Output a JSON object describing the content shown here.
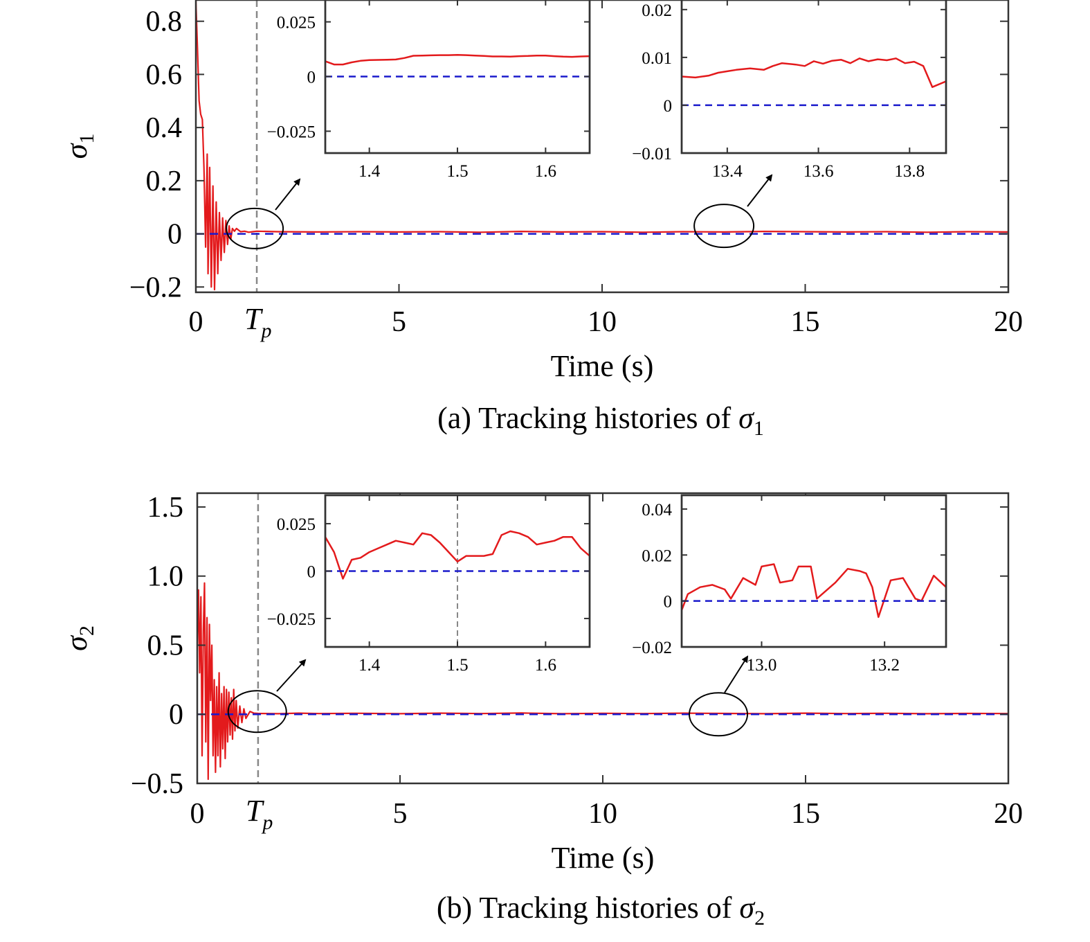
{
  "colors": {
    "response": "#e31a1c",
    "reference": "#1a1acc",
    "frame": "#333333",
    "tp_line": "#888888"
  },
  "chart_data": [
    {
      "id": "a",
      "type": "line",
      "caption": "(a) Tracking histories of σ₁",
      "caption_text": "(a) Tracking histories of ",
      "caption_symbol": "σ",
      "caption_sub": "1",
      "xlabel": "Time (s)",
      "ylabel_symbol": "σ",
      "ylabel_sub": "1",
      "xlim": [
        0,
        20
      ],
      "ylim": [
        -0.22,
        0.88
      ],
      "xticks": [
        0,
        5,
        10,
        15,
        20
      ],
      "xtick_labels": [
        "0",
        "5",
        "10",
        "15",
        "20"
      ],
      "yticks": [
        -0.2,
        0,
        0.2,
        0.4,
        0.6,
        0.8
      ],
      "ytick_labels": [
        "−0.2",
        "0",
        "0.2",
        "0.4",
        "0.6",
        "0.8"
      ],
      "tp_marker": {
        "x": 1.5,
        "label_main": "T",
        "label_sub": "p"
      },
      "series": [
        {
          "style": "solid",
          "color": "red",
          "x": [
            0,
            0.04,
            0.08,
            0.12,
            0.16,
            0.2,
            0.24,
            0.28,
            0.3,
            0.34,
            0.38,
            0.42,
            0.46,
            0.5,
            0.54,
            0.58,
            0.62,
            0.66,
            0.7,
            0.74,
            0.78,
            0.82,
            0.86,
            0.9,
            0.95,
            1.0,
            1.1,
            1.2,
            1.3,
            1.4,
            1.5,
            2,
            3,
            4,
            5,
            6,
            7,
            8,
            9,
            10,
            11,
            12,
            13,
            14,
            15,
            16,
            17,
            18,
            19,
            20
          ],
          "y": [
            0.88,
            0.7,
            0.5,
            0.45,
            0.43,
            0.25,
            -0.05,
            0.3,
            -0.15,
            0.25,
            -0.2,
            0.18,
            -0.21,
            0.12,
            -0.15,
            0.08,
            -0.1,
            0.06,
            -0.07,
            0.05,
            -0.04,
            0.03,
            -0.02,
            0.02,
            0.01,
            0.02,
            0.008,
            0.01,
            0.006,
            0.008,
            0.01,
            0.008,
            0.007,
            0.008,
            0.007,
            0.008,
            0.006,
            0.009,
            0.007,
            0.008,
            0.006,
            0.008,
            0.007,
            0.009,
            0.008,
            0.007,
            0.008,
            0.006,
            0.008,
            0.007
          ]
        },
        {
          "style": "dashed",
          "color": "blue",
          "x": [
            0,
            20
          ],
          "y": [
            0,
            0
          ]
        }
      ],
      "highlights": [
        {
          "cx": 1.45,
          "cy": 0.02
        },
        {
          "cx": 13.0,
          "cy": 0.03
        }
      ],
      "insets": [
        {
          "xlim": [
            1.35,
            1.65
          ],
          "ylim": [
            -0.035,
            0.035
          ],
          "xticks": [
            1.4,
            1.5,
            1.6
          ],
          "xtick_labels": [
            "1.4",
            "1.5",
            "1.6"
          ],
          "yticks": [
            -0.025,
            0,
            0.025
          ],
          "ytick_labels": [
            "−0.025",
            "0",
            "0.025"
          ],
          "vline": null,
          "series": [
            {
              "style": "solid",
              "color": "red",
              "x": [
                1.35,
                1.36,
                1.37,
                1.38,
                1.39,
                1.4,
                1.41,
                1.42,
                1.43,
                1.44,
                1.45,
                1.46,
                1.47,
                1.48,
                1.49,
                1.5,
                1.51,
                1.52,
                1.53,
                1.54,
                1.55,
                1.56,
                1.57,
                1.58,
                1.59,
                1.6,
                1.61,
                1.62,
                1.63,
                1.64,
                1.65
              ],
              "y": [
                0.007,
                0.0055,
                0.0055,
                0.0065,
                0.0072,
                0.0075,
                0.0076,
                0.0077,
                0.0078,
                0.0085,
                0.0095,
                0.0096,
                0.0097,
                0.0098,
                0.0098,
                0.0099,
                0.0098,
                0.0096,
                0.0094,
                0.0092,
                0.0092,
                0.0091,
                0.0093,
                0.0094,
                0.0096,
                0.0096,
                0.0093,
                0.0091,
                0.009,
                0.0092,
                0.0093
              ]
            },
            {
              "style": "dashed",
              "color": "blue",
              "x": [
                1.35,
                1.65
              ],
              "y": [
                0,
                0
              ]
            }
          ]
        },
        {
          "xlim": [
            13.3,
            13.88
          ],
          "ylim": [
            -0.01,
            0.022
          ],
          "xticks": [
            13.4,
            13.6,
            13.8
          ],
          "xtick_labels": [
            "13.4",
            "13.6",
            "13.8"
          ],
          "yticks": [
            -0.01,
            0,
            0.01,
            0.02
          ],
          "ytick_labels": [
            "−0.01",
            "0",
            "0.01",
            "0.02"
          ],
          "vline": null,
          "series": [
            {
              "style": "solid",
              "color": "red",
              "x": [
                13.3,
                13.33,
                13.36,
                13.38,
                13.4,
                13.42,
                13.45,
                13.48,
                13.5,
                13.52,
                13.55,
                13.57,
                13.59,
                13.61,
                13.63,
                13.65,
                13.67,
                13.69,
                13.71,
                13.73,
                13.75,
                13.77,
                13.79,
                13.81,
                13.83,
                13.85,
                13.88
              ],
              "y": [
                0.006,
                0.0058,
                0.0062,
                0.0068,
                0.0071,
                0.0074,
                0.0077,
                0.0074,
                0.0082,
                0.0088,
                0.0085,
                0.0082,
                0.0092,
                0.0087,
                0.0093,
                0.0095,
                0.0088,
                0.0098,
                0.0092,
                0.0096,
                0.0094,
                0.0098,
                0.0088,
                0.0091,
                0.0082,
                0.0038,
                0.005
              ]
            },
            {
              "style": "dashed",
              "color": "blue",
              "x": [
                13.3,
                13.88
              ],
              "y": [
                0,
                0
              ]
            }
          ]
        }
      ]
    },
    {
      "id": "b",
      "type": "line",
      "caption": "(b) Tracking histories of σ₂",
      "caption_text": "(b) Tracking histories of ",
      "caption_symbol": "σ",
      "caption_sub": "2",
      "xlabel": "Time (s)",
      "ylabel_symbol": "σ",
      "ylabel_sub": "2",
      "xlim": [
        0,
        20
      ],
      "ylim": [
        -0.5,
        1.6
      ],
      "xticks": [
        0,
        5,
        10,
        15,
        20
      ],
      "xtick_labels": [
        "0",
        "5",
        "10",
        "15",
        "20"
      ],
      "yticks": [
        -0.5,
        0,
        0.5,
        1.0,
        1.5
      ],
      "ytick_labels": [
        "−0.5",
        "0",
        "0.5",
        "1.0",
        "1.5"
      ],
      "tp_marker": {
        "x": 1.5,
        "label_main": "T",
        "label_sub": "p"
      },
      "series": [
        {
          "style": "solid",
          "color": "red",
          "x": [
            0,
            0.03,
            0.06,
            0.09,
            0.12,
            0.15,
            0.18,
            0.21,
            0.24,
            0.27,
            0.3,
            0.33,
            0.36,
            0.39,
            0.42,
            0.45,
            0.48,
            0.51,
            0.54,
            0.57,
            0.6,
            0.63,
            0.66,
            0.69,
            0.72,
            0.75,
            0.78,
            0.81,
            0.84,
            0.87,
            0.9,
            0.93,
            0.96,
            1.0,
            1.05,
            1.1,
            1.15,
            1.2,
            1.3,
            1.4,
            1.5,
            2,
            2.5,
            3,
            4,
            5,
            6,
            7,
            8,
            9,
            10,
            11,
            12,
            13,
            14,
            15,
            16,
            17,
            18,
            19,
            20
          ],
          "y": [
            0.5,
            0.9,
            0.3,
            0.85,
            -0.3,
            0.6,
            0.95,
            -0.2,
            0.7,
            -0.47,
            0.65,
            0.1,
            0.5,
            -0.3,
            0.25,
            -0.42,
            0.2,
            -0.3,
            0.3,
            -0.38,
            0.15,
            -0.25,
            0.2,
            -0.32,
            0.18,
            -0.2,
            0.16,
            -0.15,
            0.12,
            -0.18,
            0.18,
            -0.12,
            0.1,
            -0.1,
            0.06,
            -0.06,
            0.04,
            -0.03,
            0.02,
            0.008,
            0.006,
            0.004,
            0.008,
            0.005,
            0.007,
            0.004,
            0.008,
            0.005,
            0.009,
            0.004,
            0.007,
            0.005,
            0.008,
            0.006,
            0.004,
            0.008,
            0.005,
            0.007,
            0.004,
            0.006,
            0.005
          ]
        },
        {
          "style": "dashed",
          "color": "blue",
          "x": [
            0,
            20
          ],
          "y": [
            0,
            0
          ]
        }
      ],
      "highlights": [
        {
          "cx": 1.48,
          "cy": 0.02
        },
        {
          "cx": 12.85,
          "cy": 0.0
        }
      ],
      "insets": [
        {
          "xlim": [
            1.35,
            1.65
          ],
          "ylim": [
            -0.04,
            0.04
          ],
          "xticks": [
            1.4,
            1.5,
            1.6
          ],
          "xtick_labels": [
            "1.4",
            "1.5",
            "1.6"
          ],
          "yticks": [
            -0.025,
            0,
            0.025
          ],
          "ytick_labels": [
            "−0.025",
            "0",
            "0.025"
          ],
          "vline": 1.5,
          "series": [
            {
              "style": "solid",
              "color": "red",
              "x": [
                1.35,
                1.36,
                1.37,
                1.38,
                1.39,
                1.4,
                1.41,
                1.42,
                1.43,
                1.44,
                1.45,
                1.46,
                1.47,
                1.48,
                1.49,
                1.5,
                1.51,
                1.52,
                1.53,
                1.54,
                1.55,
                1.56,
                1.57,
                1.58,
                1.59,
                1.6,
                1.61,
                1.62,
                1.63,
                1.64,
                1.65
              ],
              "y": [
                0.018,
                0.01,
                -0.004,
                0.006,
                0.007,
                0.01,
                0.012,
                0.014,
                0.016,
                0.015,
                0.014,
                0.02,
                0.019,
                0.015,
                0.01,
                0.005,
                0.008,
                0.008,
                0.008,
                0.009,
                0.019,
                0.021,
                0.02,
                0.018,
                0.014,
                0.015,
                0.016,
                0.018,
                0.018,
                0.012,
                0.008
              ]
            },
            {
              "style": "dashed",
              "color": "blue",
              "x": [
                1.35,
                1.65
              ],
              "y": [
                0,
                0
              ]
            }
          ]
        },
        {
          "xlim": [
            12.87,
            13.3
          ],
          "ylim": [
            -0.02,
            0.046
          ],
          "xticks": [
            13.0,
            13.2
          ],
          "xtick_labels": [
            "13.0",
            "13.2"
          ],
          "yticks": [
            -0.02,
            0,
            0.02,
            0.04
          ],
          "ytick_labels": [
            "−0.02",
            "0",
            "0.02",
            "0.04"
          ],
          "vline": null,
          "series": [
            {
              "style": "solid",
              "color": "red",
              "x": [
                12.87,
                12.88,
                12.9,
                12.92,
                12.94,
                12.95,
                12.97,
                12.99,
                13.0,
                13.02,
                13.03,
                13.05,
                13.06,
                13.08,
                13.09,
                13.12,
                13.14,
                13.16,
                13.17,
                13.18,
                13.19,
                13.21,
                13.23,
                13.25,
                13.26,
                13.28,
                13.3
              ],
              "y": [
                -0.004,
                0.003,
                0.006,
                0.007,
                0.005,
                0.001,
                0.01,
                0.007,
                0.015,
                0.016,
                0.008,
                0.009,
                0.015,
                0.015,
                0.001,
                0.008,
                0.014,
                0.013,
                0.012,
                0.006,
                -0.007,
                0.009,
                0.01,
                0.001,
                0.0,
                0.011,
                0.006
              ]
            },
            {
              "style": "dashed",
              "color": "blue",
              "x": [
                12.87,
                13.3
              ],
              "y": [
                0,
                0
              ]
            }
          ]
        }
      ]
    }
  ]
}
